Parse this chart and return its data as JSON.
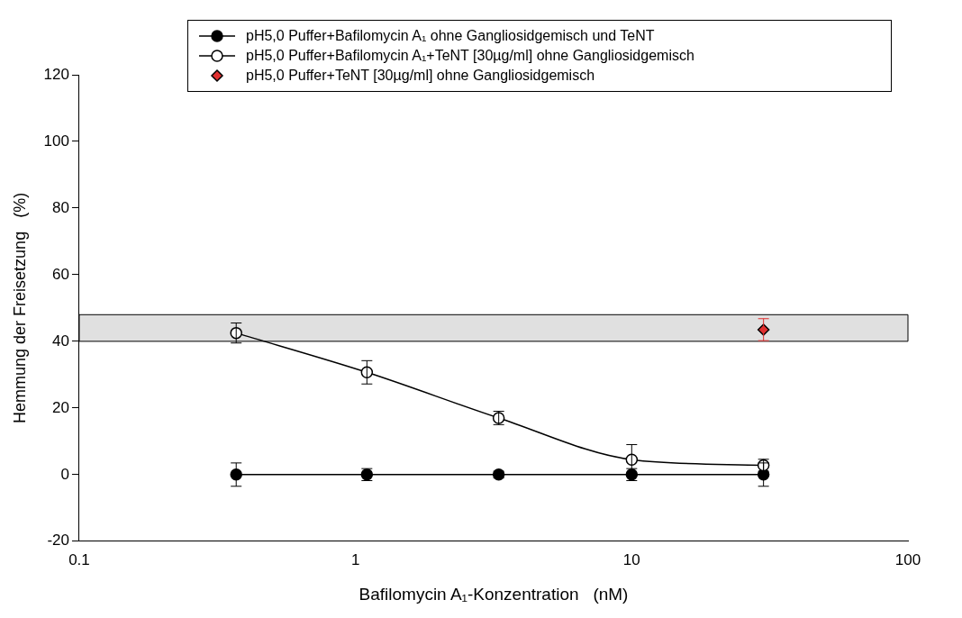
{
  "chart_data": {
    "type": "line",
    "xlabel": "Bafilomycin A₁-Konzentration   (nM)",
    "ylabel": "Hemmung der Freisetzung   (%)",
    "log": "x",
    "xlim": [
      0.1,
      100
    ],
    "xticks": [
      0.1,
      1,
      10,
      100
    ],
    "ylim": [
      -20,
      120
    ],
    "yticks": [
      -20,
      0,
      20,
      40,
      60,
      80,
      100,
      120
    ],
    "grid": false,
    "legend": "top",
    "x": [
      0.37,
      1.1,
      3.3,
      10,
      30
    ],
    "series": [
      {
        "name": "pH5,0 Puffer+Bafilomycin A₁ ohne Gangliosidgemisch und TeNT",
        "color": "#000000",
        "marker": "circle",
        "values": [
          0,
          0,
          0,
          0,
          0
        ],
        "errors": [
          3.5,
          1.8,
          1,
          1.8,
          3.5
        ]
      },
      {
        "name": "pH5,0 Puffer+Bafilomycin A₁+TeNT [30µg/ml] ohne Gangliosidgemisch",
        "color": "#ffffff",
        "marker": "circle",
        "values": [
          42.5,
          30.7,
          17,
          4.5,
          2.8
        ],
        "errors": [
          3,
          3.5,
          2,
          4.5,
          1.8
        ]
      },
      {
        "name": "pH5,0 Puffer+TeNT [30µg/ml] ohne Gangliosidgemisch",
        "type": "scatter",
        "color": "#e03030",
        "marker": "diamond",
        "x": [
          30
        ],
        "values": [
          43.5
        ],
        "errors": [
          3.3
        ]
      }
    ],
    "bands": [
      {
        "axis": "y",
        "from": 40,
        "to": 48,
        "color": "#000000"
      }
    ]
  }
}
